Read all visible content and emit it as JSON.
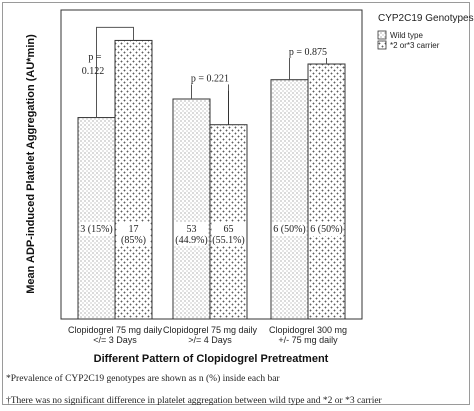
{
  "chart_data": {
    "type": "bar",
    "ylabel": "Mean ADP-induced Platelet Aggregation (AU*min)",
    "xlabel": "Different Pattern of Clopidogrel Pretreatment",
    "categories": [
      [
        "Clopidogrel 75 mg daily",
        "</= 3 Days"
      ],
      [
        "Clopidogrel 75 mg daily",
        ">/= 4 Days"
      ],
      [
        "Clopidogrel 300 mg",
        "+/- 75 mg daily"
      ]
    ],
    "ylim": [
      0,
      420
    ],
    "legend": {
      "title": "CYP2C19 Genotypes",
      "placement": "top-right"
    },
    "series": [
      {
        "name": "Wild type",
        "values": [
          282,
          308,
          335
        ],
        "error_upper": [
          282,
          308,
          335
        ],
        "labels": [
          [
            "3 (15%)"
          ],
          [
            "53",
            "(44.9%)"
          ],
          [
            "6 (50%)"
          ]
        ]
      },
      {
        "name": "*2 or*3 carrier",
        "values": [
          390,
          272,
          357
        ],
        "error_upper": [
          390,
          320,
          357
        ],
        "labels": [
          [
            "17",
            "(85%)"
          ],
          [
            "65",
            "(55.1%)"
          ],
          [
            "6 (50%)"
          ]
        ]
      }
    ],
    "p_values": [
      [
        "p =",
        "0.122"
      ],
      [
        "p = 0.221"
      ],
      [
        "p = 0.875"
      ]
    ]
  },
  "footnotes": [
    "*Prevalence of CYP2C19 genotypes are shown as n (%) inside each bar",
    "†There was no significant difference in platelet aggregation between wild type and *2 or *3 carrier"
  ]
}
